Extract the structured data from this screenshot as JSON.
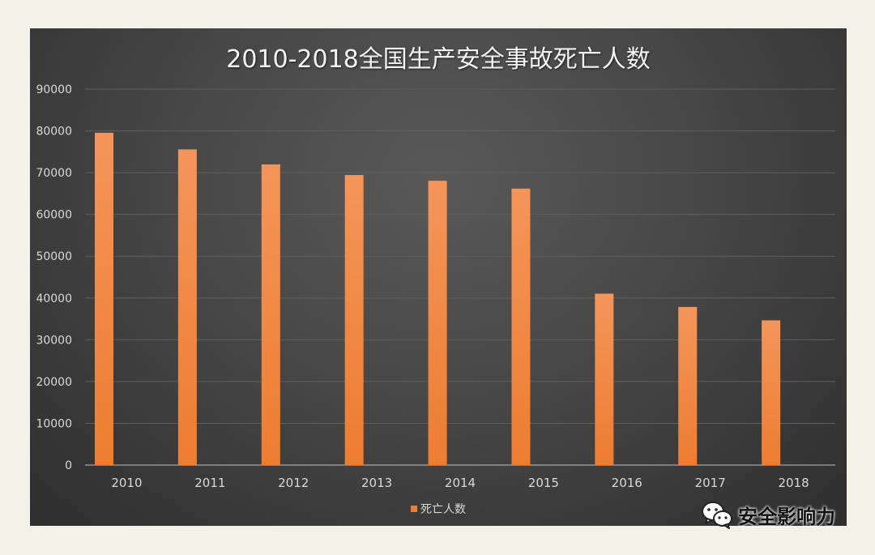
{
  "chart_data": {
    "type": "bar",
    "title": "2010-2018全国生产安全事故死亡人数",
    "categories": [
      "2010",
      "2011",
      "2012",
      "2013",
      "2014",
      "2015",
      "2016",
      "2017",
      "2018"
    ],
    "series": [
      {
        "name": "死亡人数",
        "values": [
          79552,
          75572,
          71983,
          69434,
          68061,
          66182,
          41033,
          37852,
          34648
        ]
      }
    ],
    "ylim": [
      0,
      90000
    ],
    "yticks": [
      0,
      10000,
      20000,
      30000,
      40000,
      50000,
      60000,
      70000,
      80000,
      90000
    ],
    "grid": true,
    "legend": "bottom",
    "bar_color": "#ed7d31"
  },
  "watermark": {
    "text": "安全影响力",
    "icon": "wechat-icon"
  }
}
